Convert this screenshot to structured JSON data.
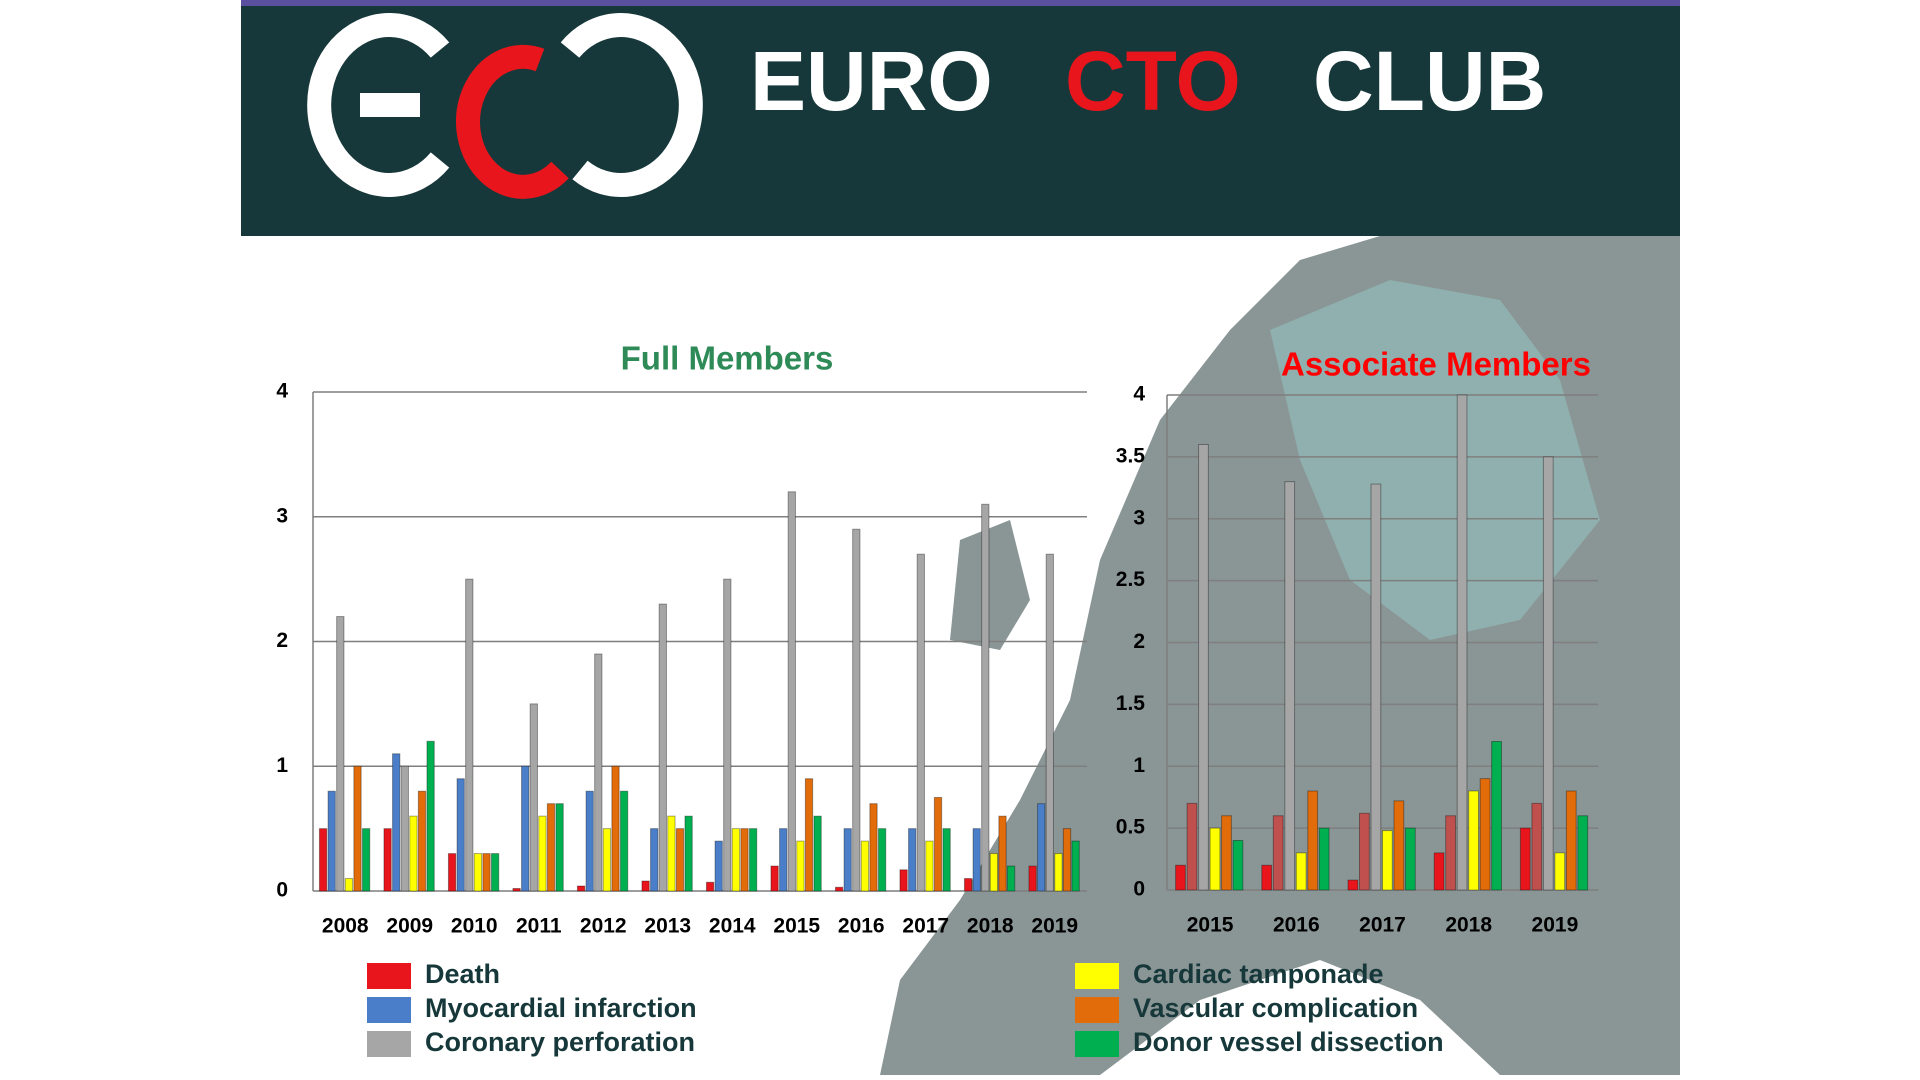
{
  "header": {
    "title_parts": [
      "EURO",
      "CTO",
      "CLUB"
    ]
  },
  "chart_data": [
    {
      "type": "bar",
      "title": "Full Members",
      "title_color": "#2e8b57",
      "categories": [
        "2008",
        "2009",
        "2010",
        "2011",
        "2012",
        "2013",
        "2014",
        "2015",
        "2016",
        "2017",
        "2018",
        "2019"
      ],
      "ylim": [
        0,
        4
      ],
      "yticks": [
        0,
        1,
        2,
        3,
        4
      ],
      "grid": true,
      "series": [
        {
          "name": "Death",
          "color": "#e8161c",
          "values": [
            0.5,
            0.5,
            0.3,
            0.02,
            0.04,
            0.08,
            0.07,
            0.2,
            0.03,
            0.17,
            0.1,
            0.2
          ]
        },
        {
          "name": "Myocardial infarction",
          "color": "#4a7ec8",
          "values": [
            0.8,
            1.1,
            0.9,
            1.0,
            0.8,
            0.5,
            0.4,
            0.5,
            0.5,
            0.5,
            0.5,
            0.7
          ]
        },
        {
          "name": "Coronary perforation",
          "color": "#a6a6a6",
          "values": [
            2.2,
            1.0,
            2.5,
            1.5,
            1.9,
            2.3,
            2.5,
            3.2,
            2.9,
            2.7,
            3.1,
            2.7
          ]
        },
        {
          "name": "Cardiac tamponade",
          "color": "#ffff00",
          "values": [
            0.1,
            0.6,
            0.3,
            0.6,
            0.5,
            0.6,
            0.5,
            0.4,
            0.4,
            0.4,
            0.3,
            0.3
          ]
        },
        {
          "name": "Vascular complication",
          "color": "#e36c0a",
          "values": [
            1.0,
            0.8,
            0.3,
            0.7,
            1.0,
            0.5,
            0.5,
            0.9,
            0.7,
            0.75,
            0.6,
            0.5
          ]
        },
        {
          "name": "Donor vessel dissection",
          "color": "#00b050",
          "values": [
            0.5,
            1.2,
            0.3,
            0.7,
            0.8,
            0.6,
            0.5,
            0.6,
            0.5,
            0.5,
            0.2,
            0.4
          ]
        }
      ]
    },
    {
      "type": "bar",
      "title": "Associate Members",
      "title_color": "#ff0000",
      "categories": [
        "2015",
        "2016",
        "2017",
        "2018",
        "2019"
      ],
      "ylim": [
        0,
        4
      ],
      "yticks": [
        0,
        0.5,
        1,
        1.5,
        2,
        2.5,
        3,
        3.5,
        4
      ],
      "grid": true,
      "series": [
        {
          "name": "Death",
          "color": "#e8161c",
          "values": [
            0.2,
            0.2,
            0.08,
            0.3,
            0.5
          ]
        },
        {
          "name": "Myocardial infarction",
          "color": "#c0504d",
          "values": [
            0.7,
            0.6,
            0.62,
            0.6,
            0.7
          ]
        },
        {
          "name": "Coronary perforation",
          "color": "#a6a6a6",
          "values": [
            3.6,
            3.3,
            3.28,
            4.0,
            3.5
          ]
        },
        {
          "name": "Cardiac tamponade",
          "color": "#ffff00",
          "values": [
            0.5,
            0.3,
            0.48,
            0.8,
            0.3
          ]
        },
        {
          "name": "Vascular complication",
          "color": "#e36c0a",
          "values": [
            0.6,
            0.8,
            0.72,
            0.9,
            0.8
          ]
        },
        {
          "name": "Donor vessel dissection",
          "color": "#00b050",
          "values": [
            0.4,
            0.5,
            0.5,
            1.2,
            0.6
          ]
        }
      ]
    }
  ]
}
